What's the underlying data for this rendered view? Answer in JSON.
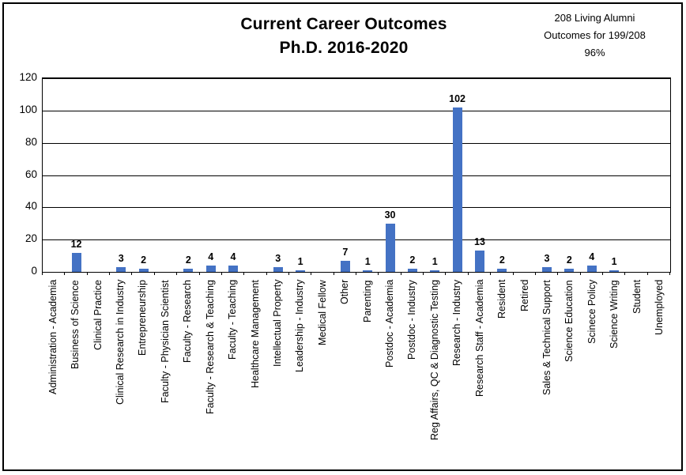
{
  "title": {
    "line1": "Current Career Outcomes",
    "line2": "Ph.D. 2016-2020"
  },
  "annotation": {
    "line1": "208 Living Alumni",
    "line2": "Outcomes for 199/208",
    "line3": "96%"
  },
  "chart_data": {
    "type": "bar",
    "title": "Current Career Outcomes Ph.D. 2016-2020",
    "xlabel": "",
    "ylabel": "",
    "ylim": [
      0,
      120
    ],
    "yticks": [
      0,
      20,
      40,
      60,
      80,
      100,
      120
    ],
    "grid": "horizontal",
    "legend": "none",
    "bar_color": "#4472C4",
    "categories": [
      "Administration - Academia",
      "Business of Science",
      "Clinical Practice",
      "Clinical Research in Industry",
      "Entrepreneurship",
      "Faculty - Physician Scientist",
      "Faculty - Research",
      "Faculty - Research & Teaching",
      "Faculty - Teaching",
      "Healthcare Management",
      "Intellectual Property",
      "Leadership - Industry",
      "Medical Fellow",
      "Other",
      "Parenting",
      "Postdoc - Academia",
      "Postdoc - Industry",
      "Reg Affairs, QC & Diagnostic Testing",
      "Research - Industry",
      "Research Staff - Academia",
      "Resident",
      "Retired",
      "Sales & Technical Support",
      "Science Education",
      "Scinece Policy",
      "Science Writing",
      "Student",
      "Unemployed"
    ],
    "values": [
      0,
      12,
      0,
      3,
      2,
      0,
      2,
      4,
      4,
      0,
      3,
      1,
      0,
      7,
      1,
      30,
      2,
      1,
      102,
      13,
      2,
      0,
      3,
      2,
      4,
      1,
      0,
      0
    ],
    "data_labels_shown_for_nonzero_only": true
  }
}
